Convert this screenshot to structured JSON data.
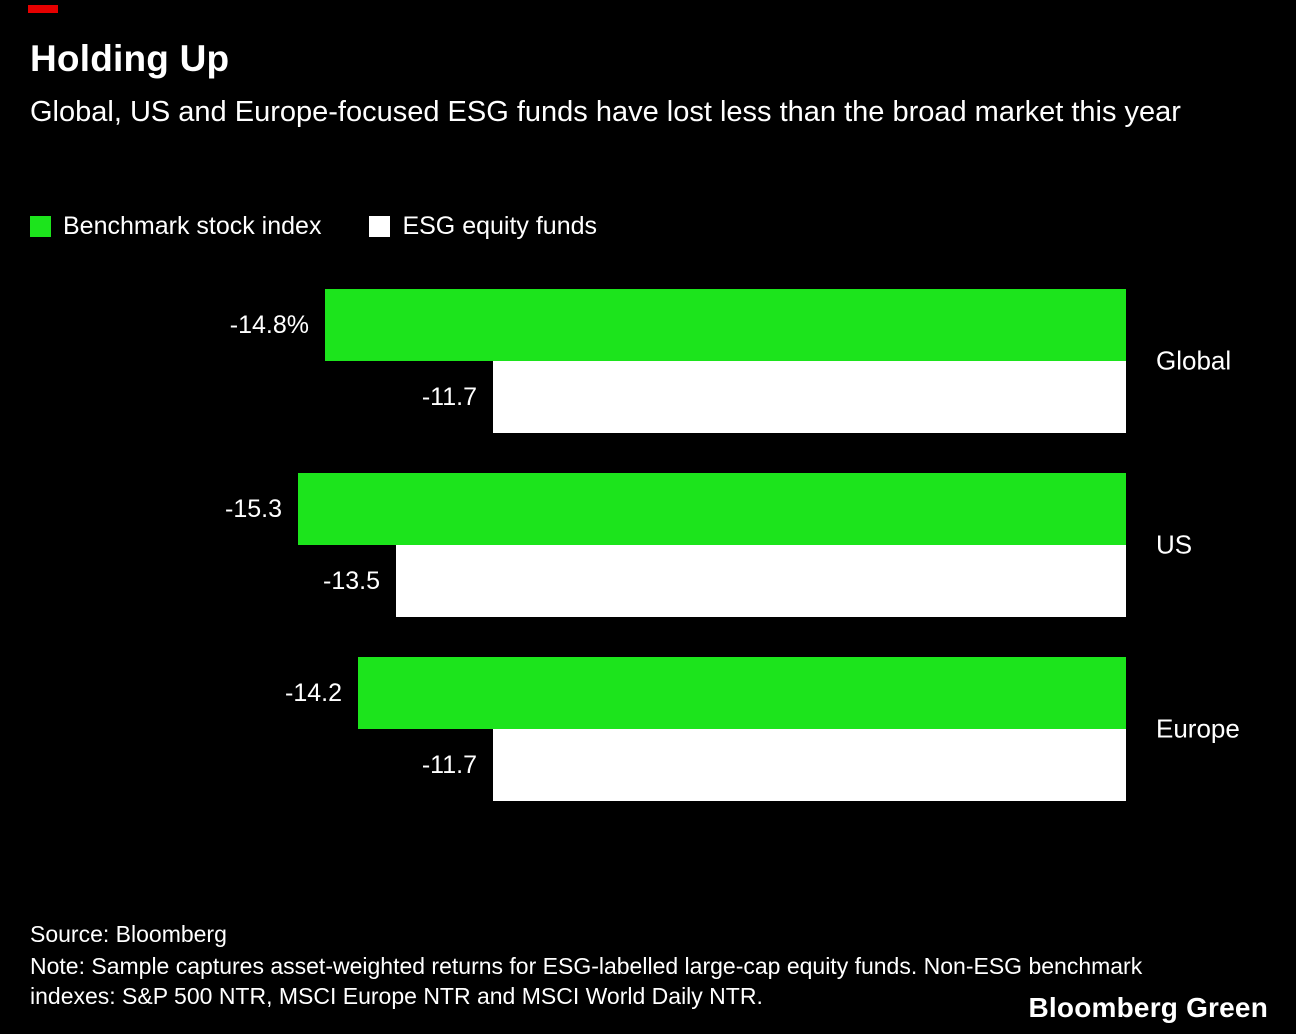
{
  "header": {
    "title": "Holding Up",
    "subtitle": "Global, US and Europe-focused ESG funds have lost less than the broad market this year"
  },
  "colors": {
    "background": "#000000",
    "benchmark_green": "#1ce41c",
    "esg_white": "#ffffff",
    "accent_red": "#e60000",
    "text": "#ffffff"
  },
  "legend": {
    "items": [
      {
        "label": "Benchmark stock index",
        "color": "#1ce41c"
      },
      {
        "label": "ESG equity funds",
        "color": "#ffffff"
      }
    ]
  },
  "chart_data": {
    "type": "bar",
    "orientation": "horizontal",
    "title": "Holding Up",
    "subtitle": "Global, US and Europe-focused ESG funds have lost less than the broad market this year",
    "categories": [
      "Global",
      "US",
      "Europe"
    ],
    "series": [
      {
        "name": "Benchmark stock index",
        "color": "#1ce41c",
        "values": [
          -14.8,
          -15.3,
          -14.2
        ],
        "labels": [
          "-14.8%",
          "-15.3",
          "-14.2"
        ]
      },
      {
        "name": "ESG equity funds",
        "color": "#ffffff",
        "values": [
          -11.7,
          -13.5,
          -11.7
        ],
        "labels": [
          "-11.7",
          "-13.5",
          "-11.7"
        ]
      }
    ],
    "xlim": [
      -16,
      0
    ],
    "value_unit": "percent",
    "axis_anchor": "right",
    "grid": false,
    "legend_position": "top-left",
    "value_labels": "outside-left",
    "category_labels": "right"
  },
  "footer": {
    "source": "Source: Bloomberg",
    "note": "Note: Sample captures asset-weighted returns for ESG-labelled large-cap equity funds. Non-ESG benchmark indexes: S&P 500 NTR, MSCI Europe NTR and MSCI World Daily NTR.",
    "brand": "Bloomberg Green"
  }
}
